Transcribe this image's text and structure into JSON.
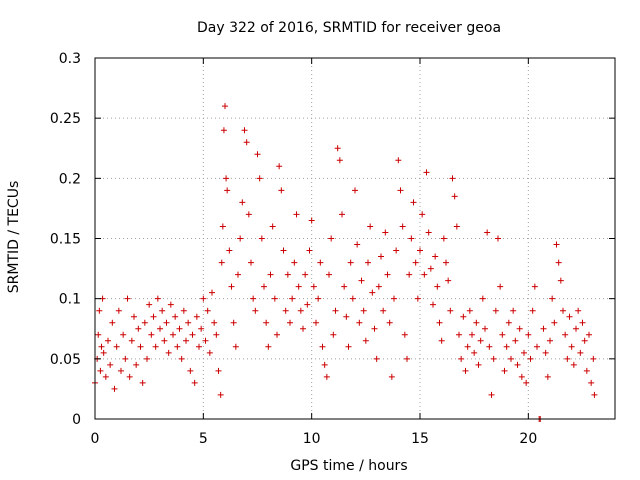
{
  "chart_data": {
    "type": "scatter",
    "title": "Day 322 of 2016, SRMTID for receiver geoa",
    "xlabel": "GPS time / hours",
    "ylabel": "SRMTID / TECUs",
    "xlim": [
      0,
      24
    ],
    "ylim": [
      0,
      0.3
    ],
    "grid": true,
    "marker": "+",
    "colors": {
      "series": "#cc0000",
      "grid": "#a0a0a0",
      "frame": "#000000"
    },
    "x_ticks": [
      {
        "value": 0,
        "label": "0"
      },
      {
        "value": 5,
        "label": "5"
      },
      {
        "value": 10,
        "label": "10"
      },
      {
        "value": 15,
        "label": "15"
      },
      {
        "value": 20,
        "label": "20"
      }
    ],
    "y_ticks": [
      {
        "value": 0,
        "label": "0"
      },
      {
        "value": 0.05,
        "label": "0.05"
      },
      {
        "value": 0.1,
        "label": "0.1"
      },
      {
        "value": 0.15,
        "label": "0.15"
      },
      {
        "value": 0.2,
        "label": "0.2"
      },
      {
        "value": 0.25,
        "label": "0.25"
      },
      {
        "value": 0.3,
        "label": "0.3"
      }
    ],
    "series": [
      {
        "name": "SRMTID",
        "points": [
          [
            0.0,
            0.03
          ],
          [
            0.1,
            0.05
          ],
          [
            0.15,
            0.07
          ],
          [
            0.2,
            0.09
          ],
          [
            0.25,
            0.04
          ],
          [
            0.3,
            0.06
          ],
          [
            0.35,
            0.1
          ],
          [
            0.4,
            0.055
          ],
          [
            0.5,
            0.035
          ],
          [
            0.6,
            0.065
          ],
          [
            0.7,
            0.045
          ],
          [
            0.8,
            0.08
          ],
          [
            0.9,
            0.025
          ],
          [
            1.0,
            0.06
          ],
          [
            1.1,
            0.09
          ],
          [
            1.2,
            0.04
          ],
          [
            1.3,
            0.07
          ],
          [
            1.4,
            0.05
          ],
          [
            1.5,
            0.1
          ],
          [
            1.6,
            0.035
          ],
          [
            1.7,
            0.065
          ],
          [
            1.8,
            0.085
          ],
          [
            1.9,
            0.045
          ],
          [
            2.0,
            0.075
          ],
          [
            2.1,
            0.06
          ],
          [
            2.2,
            0.03
          ],
          [
            2.3,
            0.08
          ],
          [
            2.4,
            0.05
          ],
          [
            2.5,
            0.095
          ],
          [
            2.6,
            0.07
          ],
          [
            2.7,
            0.085
          ],
          [
            2.8,
            0.06
          ],
          [
            2.9,
            0.1
          ],
          [
            3.0,
            0.075
          ],
          [
            3.1,
            0.09
          ],
          [
            3.2,
            0.065
          ],
          [
            3.3,
            0.08
          ],
          [
            3.4,
            0.055
          ],
          [
            3.5,
            0.095
          ],
          [
            3.6,
            0.07
          ],
          [
            3.7,
            0.085
          ],
          [
            3.8,
            0.06
          ],
          [
            3.9,
            0.075
          ],
          [
            4.0,
            0.05
          ],
          [
            4.1,
            0.09
          ],
          [
            4.2,
            0.065
          ],
          [
            4.3,
            0.08
          ],
          [
            4.4,
            0.04
          ],
          [
            4.5,
            0.07
          ],
          [
            4.6,
            0.03
          ],
          [
            4.7,
            0.085
          ],
          [
            4.8,
            0.06
          ],
          [
            4.9,
            0.075
          ],
          [
            5.0,
            0.1
          ],
          [
            5.1,
            0.065
          ],
          [
            5.2,
            0.09
          ],
          [
            5.3,
            0.055
          ],
          [
            5.4,
            0.105
          ],
          [
            5.5,
            0.08
          ],
          [
            5.6,
            0.07
          ],
          [
            5.7,
            0.04
          ],
          [
            5.8,
            0.02
          ],
          [
            5.85,
            0.13
          ],
          [
            5.9,
            0.16
          ],
          [
            5.95,
            0.24
          ],
          [
            6.0,
            0.26
          ],
          [
            6.05,
            0.2
          ],
          [
            6.1,
            0.19
          ],
          [
            6.2,
            0.14
          ],
          [
            6.3,
            0.11
          ],
          [
            6.4,
            0.08
          ],
          [
            6.5,
            0.06
          ],
          [
            6.6,
            0.12
          ],
          [
            6.7,
            0.15
          ],
          [
            6.8,
            0.18
          ],
          [
            6.9,
            0.24
          ],
          [
            7.0,
            0.23
          ],
          [
            7.1,
            0.17
          ],
          [
            7.2,
            0.13
          ],
          [
            7.3,
            0.1
          ],
          [
            7.4,
            0.09
          ],
          [
            7.5,
            0.22
          ],
          [
            7.6,
            0.2
          ],
          [
            7.7,
            0.15
          ],
          [
            7.8,
            0.11
          ],
          [
            7.9,
            0.08
          ],
          [
            8.0,
            0.06
          ],
          [
            8.1,
            0.12
          ],
          [
            8.2,
            0.16
          ],
          [
            8.3,
            0.1
          ],
          [
            8.4,
            0.07
          ],
          [
            8.5,
            0.21
          ],
          [
            8.6,
            0.19
          ],
          [
            8.7,
            0.14
          ],
          [
            8.8,
            0.09
          ],
          [
            8.9,
            0.12
          ],
          [
            9.0,
            0.08
          ],
          [
            9.1,
            0.1
          ],
          [
            9.2,
            0.13
          ],
          [
            9.3,
            0.17
          ],
          [
            9.4,
            0.11
          ],
          [
            9.5,
            0.09
          ],
          [
            9.6,
            0.075
          ],
          [
            9.7,
            0.12
          ],
          [
            9.8,
            0.095
          ],
          [
            9.9,
            0.14
          ],
          [
            10.0,
            0.165
          ],
          [
            10.1,
            0.11
          ],
          [
            10.2,
            0.08
          ],
          [
            10.3,
            0.1
          ],
          [
            10.4,
            0.13
          ],
          [
            10.5,
            0.06
          ],
          [
            10.6,
            0.045
          ],
          [
            10.7,
            0.035
          ],
          [
            10.8,
            0.12
          ],
          [
            10.9,
            0.15
          ],
          [
            11.0,
            0.07
          ],
          [
            11.1,
            0.09
          ],
          [
            11.2,
            0.225
          ],
          [
            11.3,
            0.215
          ],
          [
            11.4,
            0.17
          ],
          [
            11.5,
            0.11
          ],
          [
            11.6,
            0.085
          ],
          [
            11.7,
            0.06
          ],
          [
            11.8,
            0.13
          ],
          [
            11.9,
            0.1
          ],
          [
            12.0,
            0.19
          ],
          [
            12.1,
            0.145
          ],
          [
            12.2,
            0.08
          ],
          [
            12.3,
            0.115
          ],
          [
            12.4,
            0.09
          ],
          [
            12.5,
            0.065
          ],
          [
            12.6,
            0.13
          ],
          [
            12.7,
            0.16
          ],
          [
            12.8,
            0.105
          ],
          [
            12.9,
            0.075
          ],
          [
            13.0,
            0.05
          ],
          [
            13.1,
            0.11
          ],
          [
            13.2,
            0.135
          ],
          [
            13.3,
            0.09
          ],
          [
            13.4,
            0.155
          ],
          [
            13.5,
            0.12
          ],
          [
            13.6,
            0.08
          ],
          [
            13.7,
            0.035
          ],
          [
            13.8,
            0.1
          ],
          [
            13.9,
            0.14
          ],
          [
            14.0,
            0.215
          ],
          [
            14.1,
            0.19
          ],
          [
            14.2,
            0.16
          ],
          [
            14.3,
            0.07
          ],
          [
            14.4,
            0.05
          ],
          [
            14.5,
            0.12
          ],
          [
            14.6,
            0.15
          ],
          [
            14.7,
            0.18
          ],
          [
            14.8,
            0.13
          ],
          [
            14.9,
            0.1
          ],
          [
            15.0,
            0.14
          ],
          [
            15.1,
            0.17
          ],
          [
            15.2,
            0.12
          ],
          [
            15.3,
            0.205
          ],
          [
            15.4,
            0.155
          ],
          [
            15.5,
            0.125
          ],
          [
            15.6,
            0.095
          ],
          [
            15.7,
            0.135
          ],
          [
            15.8,
            0.11
          ],
          [
            15.9,
            0.08
          ],
          [
            16.0,
            0.065
          ],
          [
            16.1,
            0.15
          ],
          [
            16.2,
            0.13
          ],
          [
            16.3,
            0.115
          ],
          [
            16.4,
            0.09
          ],
          [
            16.5,
            0.2
          ],
          [
            16.6,
            0.185
          ],
          [
            16.7,
            0.16
          ],
          [
            16.8,
            0.07
          ],
          [
            16.9,
            0.05
          ],
          [
            17.0,
            0.085
          ],
          [
            17.1,
            0.04
          ],
          [
            17.2,
            0.06
          ],
          [
            17.3,
            0.09
          ],
          [
            17.4,
            0.07
          ],
          [
            17.5,
            0.055
          ],
          [
            17.6,
            0.08
          ],
          [
            17.7,
            0.045
          ],
          [
            17.8,
            0.065
          ],
          [
            17.9,
            0.1
          ],
          [
            18.0,
            0.075
          ],
          [
            18.1,
            0.155
          ],
          [
            18.2,
            0.06
          ],
          [
            18.3,
            0.02
          ],
          [
            18.4,
            0.05
          ],
          [
            18.5,
            0.09
          ],
          [
            18.6,
            0.15
          ],
          [
            18.7,
            0.11
          ],
          [
            18.8,
            0.07
          ],
          [
            18.9,
            0.04
          ],
          [
            19.0,
            0.06
          ],
          [
            19.1,
            0.08
          ],
          [
            19.2,
            0.05
          ],
          [
            19.3,
            0.09
          ],
          [
            19.4,
            0.065
          ],
          [
            19.5,
            0.045
          ],
          [
            19.6,
            0.075
          ],
          [
            19.7,
            0.035
          ],
          [
            19.8,
            0.055
          ],
          [
            19.9,
            0.03
          ],
          [
            20.0,
            0.07
          ],
          [
            20.1,
            0.05
          ],
          [
            20.2,
            0.09
          ],
          [
            20.3,
            0.11
          ],
          [
            20.4,
            0.06
          ],
          [
            20.5,
            0.0
          ],
          [
            20.55,
            0.0
          ],
          [
            20.7,
            0.075
          ],
          [
            20.8,
            0.055
          ],
          [
            20.9,
            0.035
          ],
          [
            21.0,
            0.065
          ],
          [
            21.1,
            0.1
          ],
          [
            21.2,
            0.08
          ],
          [
            21.3,
            0.145
          ],
          [
            21.4,
            0.13
          ],
          [
            21.5,
            0.115
          ],
          [
            21.6,
            0.09
          ],
          [
            21.7,
            0.07
          ],
          [
            21.8,
            0.05
          ],
          [
            21.9,
            0.085
          ],
          [
            22.0,
            0.06
          ],
          [
            22.1,
            0.045
          ],
          [
            22.2,
            0.075
          ],
          [
            22.3,
            0.09
          ],
          [
            22.4,
            0.055
          ],
          [
            22.5,
            0.08
          ],
          [
            22.6,
            0.065
          ],
          [
            22.7,
            0.04
          ],
          [
            22.8,
            0.07
          ],
          [
            22.9,
            0.03
          ],
          [
            23.0,
            0.05
          ],
          [
            23.05,
            0.02
          ]
        ]
      }
    ]
  }
}
